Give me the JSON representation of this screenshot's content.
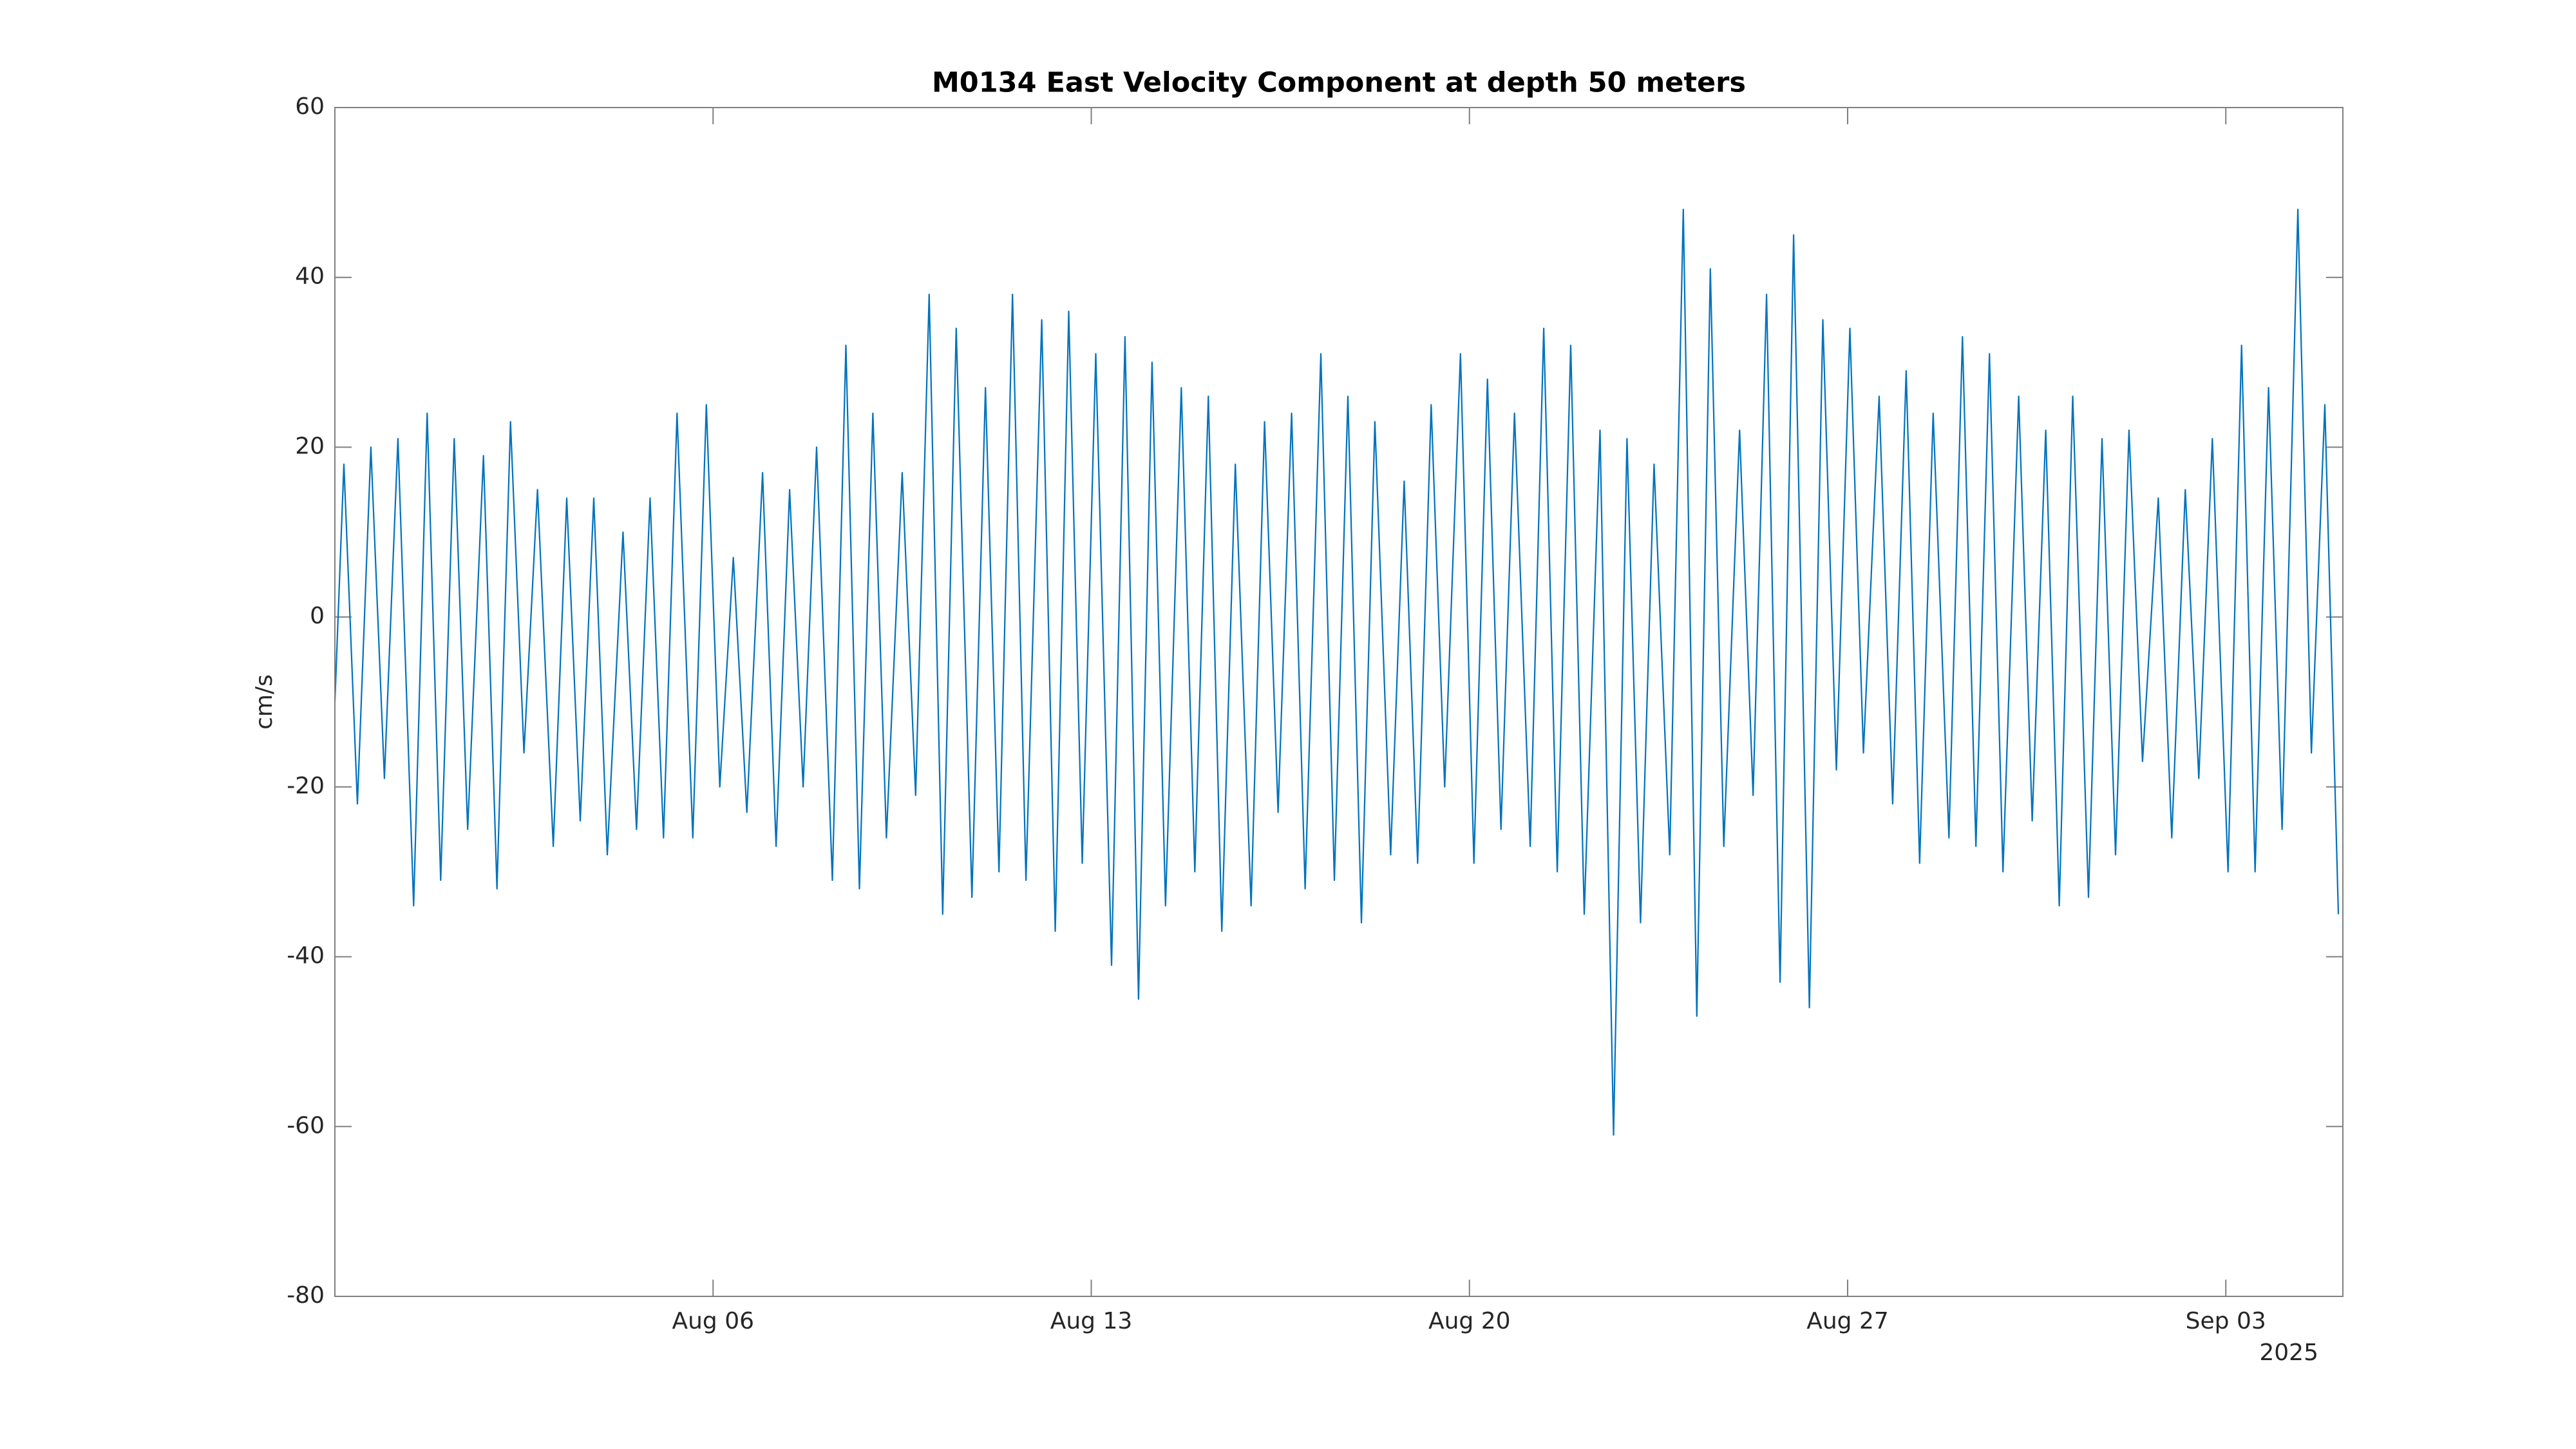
{
  "chart_data": {
    "type": "line",
    "title": "M0134 East Velocity Component at depth 50 meters",
    "y_label": "cm/s",
    "x_secondary_label": "2025",
    "color": "#0072bd",
    "grid": false,
    "xlim": [
      "2025-07-30T00:00",
      "2025-09-05T04:00"
    ],
    "xticks": [
      {
        "value": "2025-08-06T00:00",
        "label": "Aug 06"
      },
      {
        "value": "2025-08-13T00:00",
        "label": "Aug 13"
      },
      {
        "value": "2025-08-20T00:00",
        "label": "Aug 20"
      },
      {
        "value": "2025-08-27T00:00",
        "label": "Aug 27"
      },
      {
        "value": "2025-09-03T00:00",
        "label": "Sep 03"
      }
    ],
    "ylim": [
      -80,
      60
    ],
    "yticks": [
      -80,
      -60,
      -40,
      -20,
      0,
      20,
      40,
      60
    ],
    "x": [
      "2025-07-30T00:00",
      "2025-07-30T04:00",
      "2025-07-30T10:00",
      "2025-07-30T16:00",
      "2025-07-30T22:00",
      "2025-07-31T04:00",
      "2025-07-31T11:00",
      "2025-07-31T17:00",
      "2025-07-31T23:00",
      "2025-08-01T05:00",
      "2025-08-01T11:00",
      "2025-08-01T18:00",
      "2025-08-02T00:00",
      "2025-08-02T06:00",
      "2025-08-02T12:00",
      "2025-08-02T18:00",
      "2025-08-03T01:00",
      "2025-08-03T07:00",
      "2025-08-03T13:00",
      "2025-08-03T19:00",
      "2025-08-04T01:00",
      "2025-08-04T08:00",
      "2025-08-04T14:00",
      "2025-08-04T20:00",
      "2025-08-05T02:00",
      "2025-08-05T08:00",
      "2025-08-05T15:00",
      "2025-08-05T21:00",
      "2025-08-06T03:00",
      "2025-08-06T09:00",
      "2025-08-06T15:00",
      "2025-08-06T22:00",
      "2025-08-07T04:00",
      "2025-08-07T10:00",
      "2025-08-07T16:00",
      "2025-08-07T22:00",
      "2025-08-08T05:00",
      "2025-08-08T11:00",
      "2025-08-08T17:00",
      "2025-08-08T23:00",
      "2025-08-09T05:00",
      "2025-08-09T12:00",
      "2025-08-09T18:00",
      "2025-08-10T00:00",
      "2025-08-10T06:00",
      "2025-08-10T12:00",
      "2025-08-10T19:00",
      "2025-08-11T01:00",
      "2025-08-11T07:00",
      "2025-08-11T13:00",
      "2025-08-11T19:00",
      "2025-08-12T02:00",
      "2025-08-12T08:00",
      "2025-08-12T14:00",
      "2025-08-12T20:00",
      "2025-08-13T02:00",
      "2025-08-13T09:00",
      "2025-08-13T15:00",
      "2025-08-13T21:00",
      "2025-08-14T03:00",
      "2025-08-14T09:00",
      "2025-08-14T16:00",
      "2025-08-14T22:00",
      "2025-08-15T04:00",
      "2025-08-15T10:00",
      "2025-08-15T16:00",
      "2025-08-15T23:00",
      "2025-08-16T05:00",
      "2025-08-16T11:00",
      "2025-08-16T17:00",
      "2025-08-16T23:00",
      "2025-08-17T06:00",
      "2025-08-17T12:00",
      "2025-08-17T18:00",
      "2025-08-18T00:00",
      "2025-08-18T06:00",
      "2025-08-18T13:00",
      "2025-08-18T19:00",
      "2025-08-19T01:00",
      "2025-08-19T07:00",
      "2025-08-19T13:00",
      "2025-08-19T20:00",
      "2025-08-20T02:00",
      "2025-08-20T08:00",
      "2025-08-20T14:00",
      "2025-08-20T20:00",
      "2025-08-21T03:00",
      "2025-08-21T09:00",
      "2025-08-21T15:00",
      "2025-08-21T21:00",
      "2025-08-22T03:00",
      "2025-08-22T10:00",
      "2025-08-22T16:00",
      "2025-08-22T22:00",
      "2025-08-23T04:00",
      "2025-08-23T10:00",
      "2025-08-23T17:00",
      "2025-08-23T23:00",
      "2025-08-24T05:00",
      "2025-08-24T11:00",
      "2025-08-24T17:00",
      "2025-08-25T00:00",
      "2025-08-25T06:00",
      "2025-08-25T12:00",
      "2025-08-25T18:00",
      "2025-08-26T00:00",
      "2025-08-26T07:00",
      "2025-08-26T13:00",
      "2025-08-26T19:00",
      "2025-08-27T01:00",
      "2025-08-27T07:00",
      "2025-08-27T14:00",
      "2025-08-27T20:00",
      "2025-08-28T02:00",
      "2025-08-28T08:00",
      "2025-08-28T14:00",
      "2025-08-28T21:00",
      "2025-08-29T03:00",
      "2025-08-29T09:00",
      "2025-08-29T15:00",
      "2025-08-29T21:00",
      "2025-08-30T04:00",
      "2025-08-30T10:00",
      "2025-08-30T16:00",
      "2025-08-30T22:00",
      "2025-08-31T04:00",
      "2025-08-31T11:00",
      "2025-08-31T17:00",
      "2025-08-31T23:00",
      "2025-09-01T05:00",
      "2025-09-01T11:00",
      "2025-09-01T18:00",
      "2025-09-02T00:00",
      "2025-09-02T06:00",
      "2025-09-02T12:00",
      "2025-09-02T18:00",
      "2025-09-03T01:00",
      "2025-09-03T07:00",
      "2025-09-03T13:00",
      "2025-09-03T19:00",
      "2025-09-04T01:00",
      "2025-09-04T08:00",
      "2025-09-04T14:00",
      "2025-09-04T20:00",
      "2025-09-05T02:00"
    ],
    "values": [
      -10,
      18,
      -22,
      20,
      -19,
      21,
      -34,
      24,
      -31,
      21,
      -25,
      19,
      -32,
      23,
      -16,
      15,
      -27,
      14,
      -24,
      14,
      -28,
      10,
      -25,
      14,
      -26,
      24,
      -26,
      25,
      -20,
      7,
      -23,
      17,
      -27,
      15,
      -20,
      20,
      -31,
      32,
      -32,
      24,
      -26,
      17,
      -21,
      38,
      -35,
      34,
      -33,
      27,
      -30,
      38,
      -31,
      35,
      -37,
      36,
      -29,
      31,
      -41,
      33,
      -45,
      30,
      -34,
      27,
      -30,
      26,
      -37,
      18,
      -34,
      23,
      -23,
      24,
      -32,
      31,
      -31,
      26,
      -36,
      23,
      -28,
      16,
      -29,
      25,
      -20,
      31,
      -29,
      28,
      -25,
      24,
      -27,
      34,
      -30,
      32,
      -35,
      22,
      -61,
      21,
      -36,
      18,
      -28,
      48,
      -47,
      41,
      -27,
      22,
      -21,
      38,
      -43,
      45,
      -46,
      35,
      -18,
      34,
      -16,
      26,
      -22,
      29,
      -29,
      24,
      -26,
      33,
      -27,
      31,
      -30,
      26,
      -24,
      22,
      -34,
      26,
      -33,
      21,
      -28,
      22,
      -17,
      14,
      -26,
      15,
      -19,
      21,
      -30,
      32,
      -30,
      27,
      -25,
      48,
      -16,
      25,
      -35
    ]
  }
}
